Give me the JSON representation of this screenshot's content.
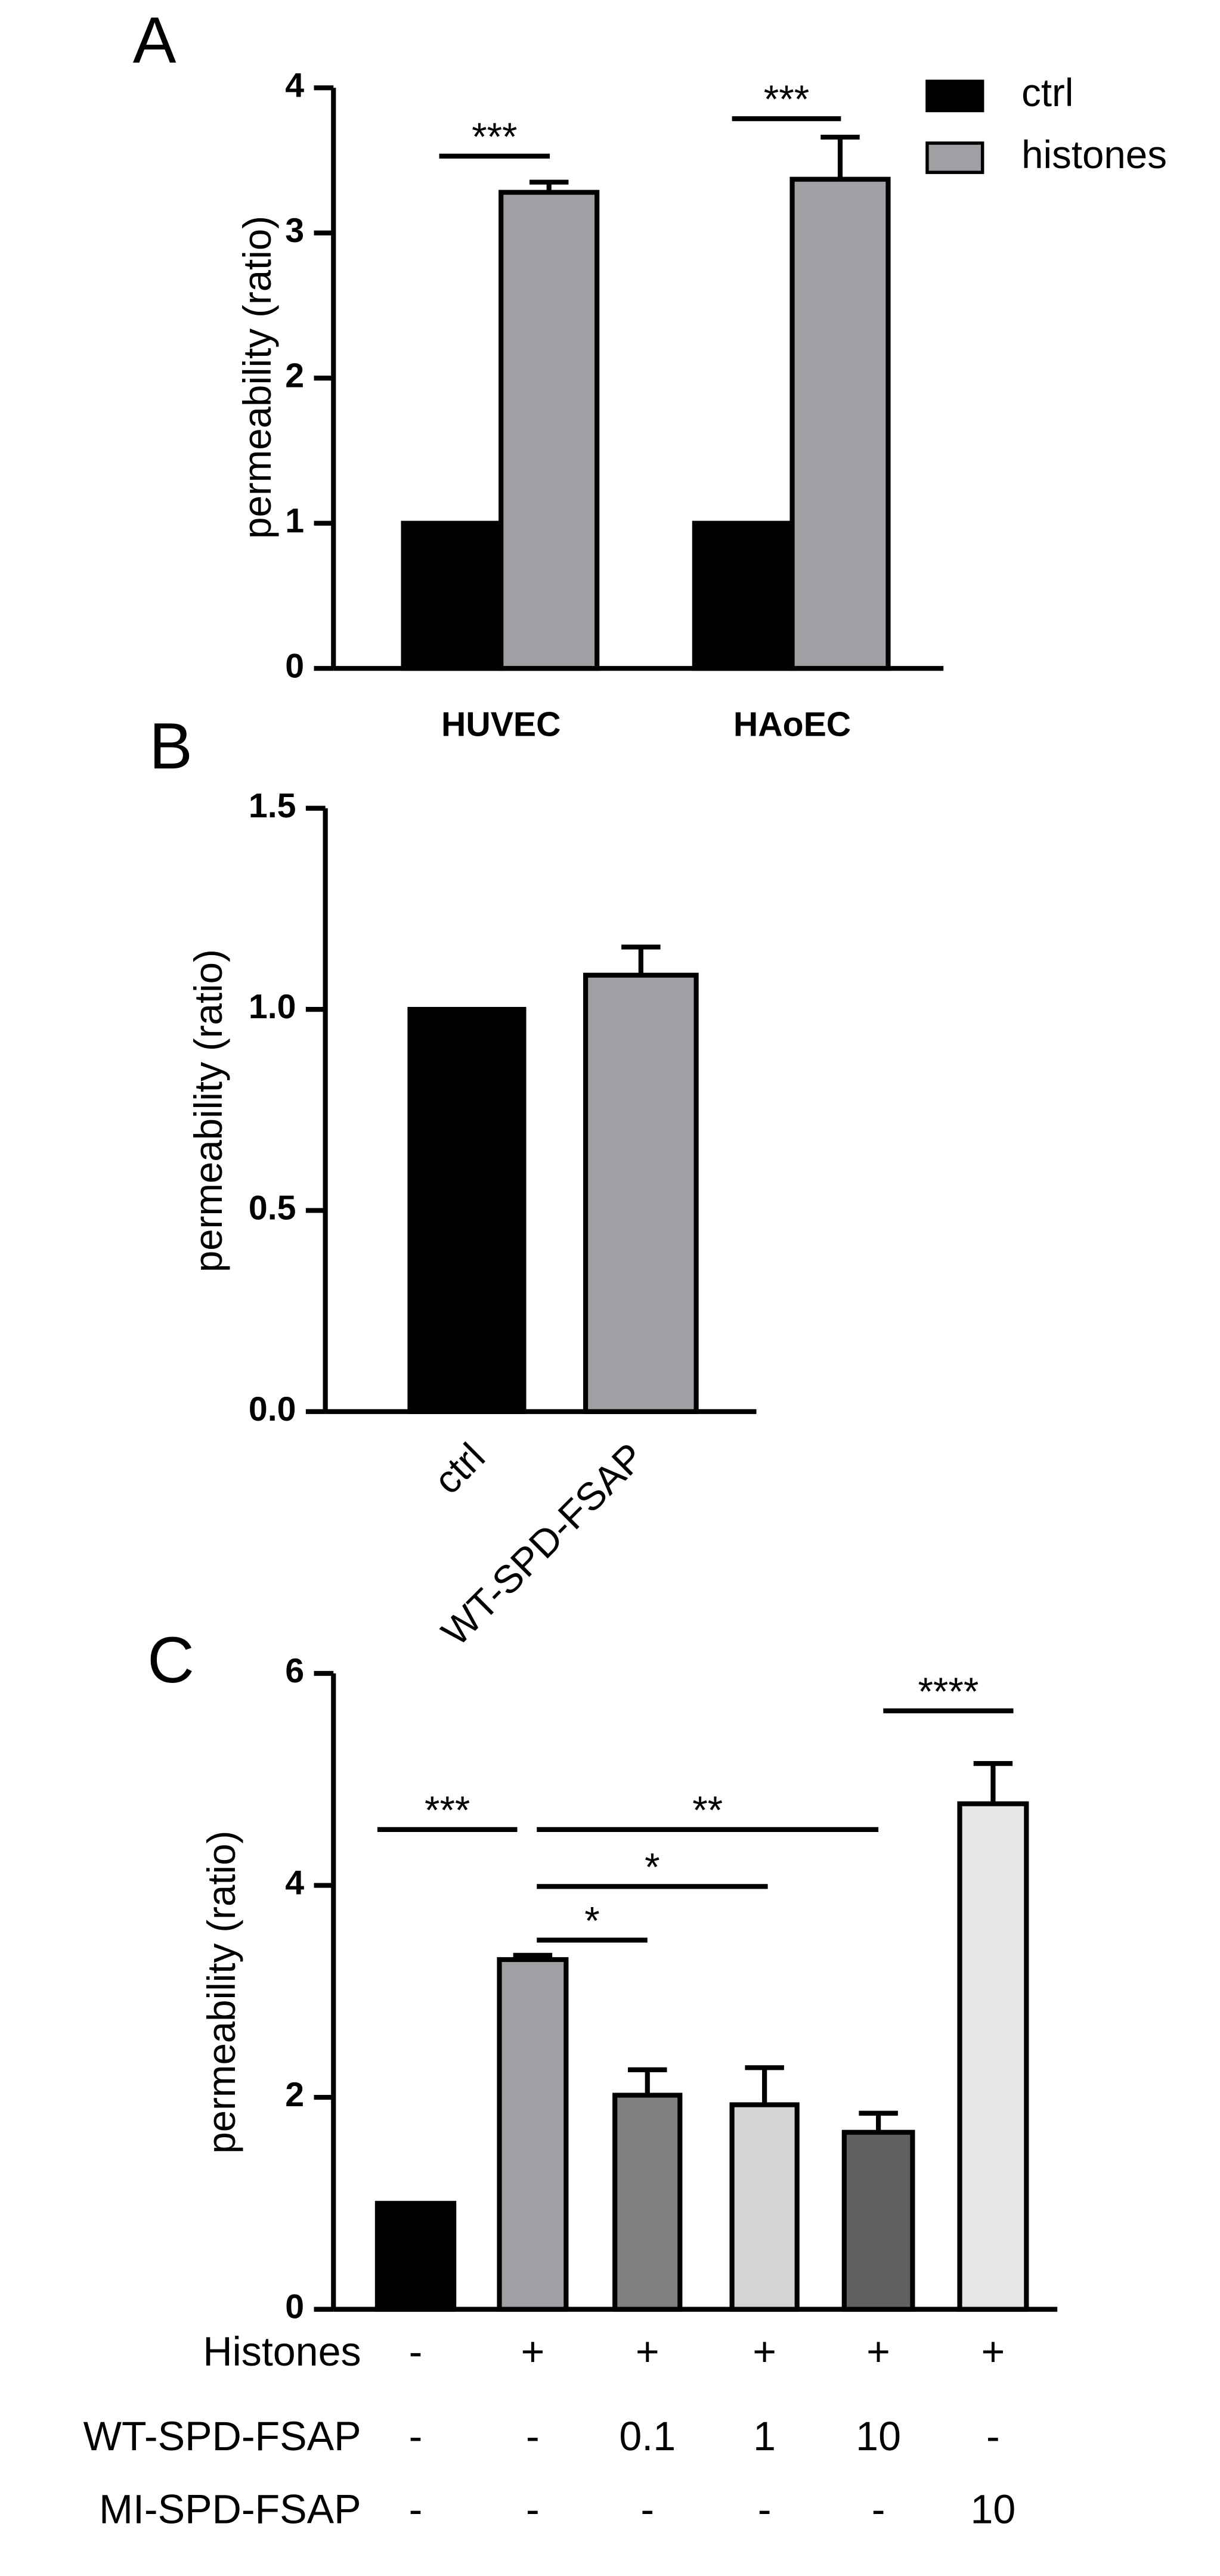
{
  "chart_data": [
    {
      "type": "bar",
      "panel": "A",
      "ylabel": "permeability (ratio)",
      "categories": [
        "HUVEC",
        "HAoEC"
      ],
      "series": [
        {
          "name": "ctrl",
          "color": "#000000",
          "values": [
            1,
            1
          ],
          "errors": [
            0,
            0
          ]
        },
        {
          "name": "histones",
          "color": "#a0a0a4",
          "values": [
            3.28,
            3.37
          ],
          "errors": [
            0.07,
            0.29
          ]
        }
      ],
      "annotations": [
        "***",
        "***"
      ],
      "ylim": [
        0,
        4
      ],
      "yticks": [
        0,
        1,
        2,
        3,
        4
      ],
      "legend": "top-right"
    },
    {
      "type": "bar",
      "panel": "B",
      "ylabel": "permeability (ratio)",
      "categories": [
        "ctrl",
        "WT-SPD-FSAP"
      ],
      "values": [
        1.0,
        1.085
      ],
      "errors": [
        0,
        0.07
      ],
      "colors": [
        "#000000",
        "#a0a0a4"
      ],
      "ylim": [
        0,
        1.5
      ],
      "yticks": [
        {
          "value": 0,
          "label": "0.0"
        },
        {
          "value": 0.5,
          "label": "0.5"
        },
        {
          "value": 1,
          "label": "1.0"
        },
        {
          "value": 1.5,
          "label": "1.5"
        }
      ]
    },
    {
      "type": "bar",
      "panel": "C",
      "ylabel": "permeability (ratio)",
      "values": [
        1,
        3.3,
        2.02,
        1.93,
        1.67,
        4.77
      ],
      "errors": [
        0,
        0.04,
        0.24,
        0.35,
        0.18,
        0.38
      ],
      "colors": [
        "#000000",
        "#a0a0a4",
        "#808080",
        "#d4d4d4",
        "#606060",
        "#e6e6e6"
      ],
      "annotations": [
        "***",
        "*",
        "*",
        "**",
        "****"
      ],
      "conditions": [
        {
          "label": "Histones",
          "cells": [
            "-",
            "+",
            "+",
            "+",
            "+",
            "+"
          ]
        },
        {
          "label": "WT-SPD-FSAP",
          "cells": [
            "-",
            "-",
            "0.1",
            "1",
            "10",
            "-"
          ]
        },
        {
          "label": "MI-SPD-FSAP",
          "cells": [
            "-",
            "-",
            "-",
            "-",
            "-",
            "10"
          ]
        }
      ],
      "ylim": [
        0,
        6
      ],
      "yticks": [
        0,
        2,
        4,
        6
      ]
    }
  ]
}
